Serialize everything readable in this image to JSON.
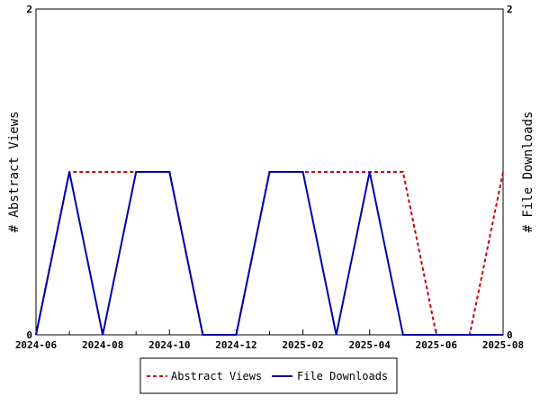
{
  "chart_data": {
    "type": "line",
    "x": [
      "2024-06",
      "2024-07",
      "2024-08",
      "2024-09",
      "2024-10",
      "2024-11",
      "2024-12",
      "2025-01",
      "2025-02",
      "2025-03",
      "2025-04",
      "2025-05",
      "2025-06",
      "2025-07",
      "2025-08"
    ],
    "x_tick_labels": [
      "2024-06",
      "2024-08",
      "2024-10",
      "2024-12",
      "2025-02",
      "2025-04",
      "2025-06",
      "2025-08"
    ],
    "series": [
      {
        "name": "Abstract Views",
        "axis": "left",
        "color": "#cc0000",
        "style": "dashed",
        "values": [
          0,
          1,
          1,
          1,
          1,
          0,
          0,
          1,
          1,
          1,
          1,
          1,
          0,
          0,
          1
        ]
      },
      {
        "name": "File Downloads",
        "axis": "right",
        "color": "#0000aa",
        "style": "solid",
        "values": [
          0,
          1,
          0,
          1,
          1,
          0,
          0,
          1,
          1,
          0,
          1,
          0,
          0,
          0,
          0
        ]
      }
    ],
    "ylabel_left": "# Abstract Views",
    "ylabel_right": "# File Downloads",
    "ylim": [
      0,
      2
    ],
    "y_ticks": [
      "0",
      "2"
    ],
    "grid": false,
    "legend_position": "bottom"
  }
}
